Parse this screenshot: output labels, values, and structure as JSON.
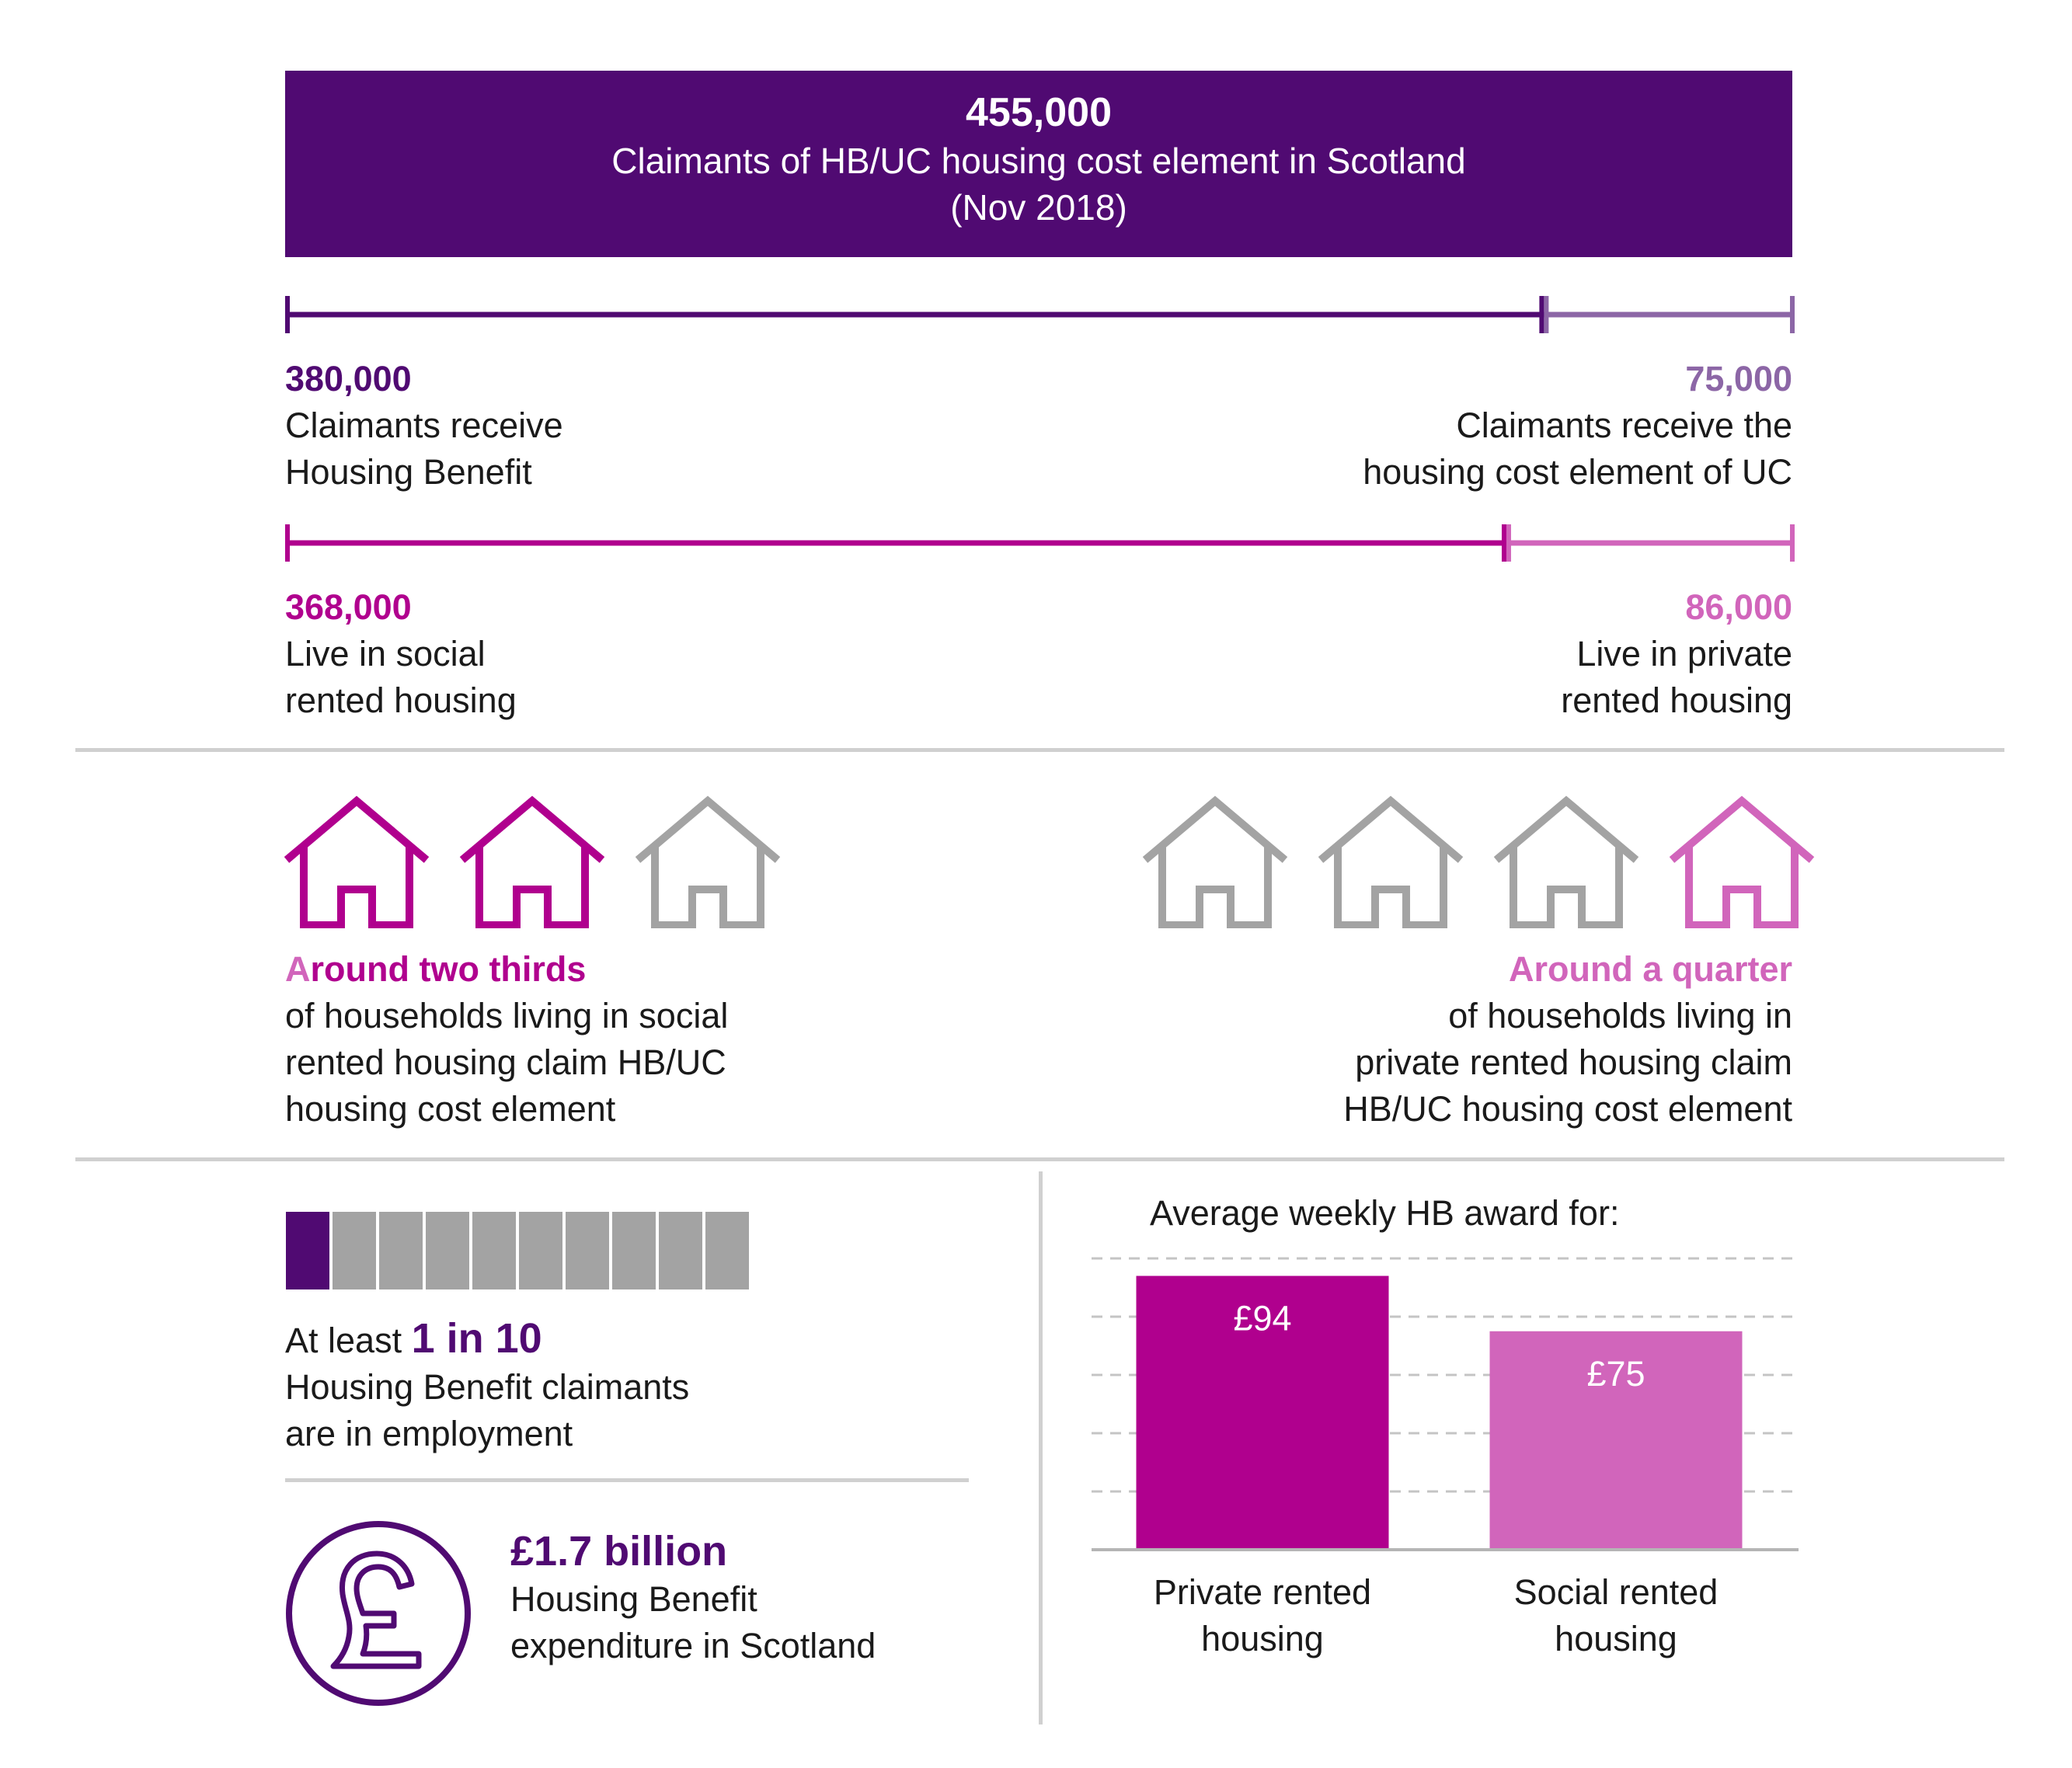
{
  "colors": {
    "dark_purple": "#500a72",
    "purple_mid": "#8c66a6",
    "magenta": "#b0008e",
    "pink": "#d165bb",
    "grey": "#a3a3a3",
    "divider": "#d0d0d0"
  },
  "banner": {
    "value": "455,000",
    "line1": "Claimants of HB/UC housing cost element in Scotland",
    "line2": "(Nov 2018)"
  },
  "split_benefit": {
    "left": {
      "value": "380,000",
      "line1": "Claimants receive",
      "line2": "Housing Benefit"
    },
    "right": {
      "value": "75,000",
      "line1": "Claimants receive the",
      "line2": "housing cost element of UC"
    },
    "left_share": 0.835
  },
  "split_tenure": {
    "left": {
      "value": "368,000",
      "line1": "Live in social",
      "line2": "rented housing"
    },
    "right": {
      "value": "86,000",
      "line1": "Live in private",
      "line2": "rented housing"
    },
    "left_share": 0.81
  },
  "social_houses": {
    "highlighted": 2,
    "total": 3,
    "heading_first": "A",
    "heading_rest": "round two thirds",
    "lines": [
      "of households living in social",
      "rented housing claim HB/UC",
      "housing cost element"
    ]
  },
  "private_houses": {
    "highlighted": 1,
    "total": 4,
    "heading": "Around a quarter",
    "lines": [
      "of households living in",
      "private rented housing claim",
      "HB/UC housing cost element"
    ]
  },
  "employment": {
    "filled": 1,
    "total": 10,
    "prefix": "At least ",
    "highlight": "1 in 10",
    "line2": "Housing Benefit claimants",
    "line3": "are in employment"
  },
  "expenditure": {
    "value": "£1.7 billion",
    "line1": "Housing Benefit",
    "line2": "expenditure in Scotland",
    "icon": "pound-sign-icon"
  },
  "chart_data": {
    "type": "bar",
    "title": "Average weekly HB award for:",
    "categories": [
      "Private rented housing",
      "Social rented housing"
    ],
    "category_lines": [
      [
        "Private rented",
        "housing"
      ],
      [
        "Social rented",
        "housing"
      ]
    ],
    "values": [
      94,
      75
    ],
    "value_labels": [
      "£94",
      "£75"
    ],
    "colors": [
      "#b0008e",
      "#d165bb"
    ],
    "ylim": [
      0,
      100
    ],
    "grid": true
  }
}
